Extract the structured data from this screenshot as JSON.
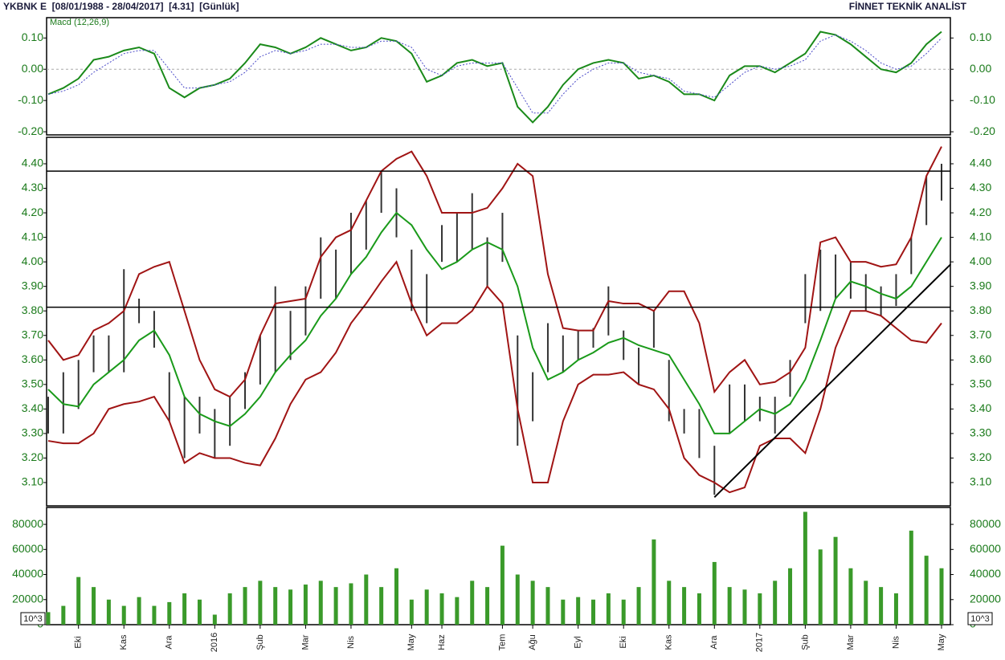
{
  "header": {
    "left": "YKBNK E  [08/01/1988 - 28/04/2017]  [4.31]  [Günlük]",
    "right": "FİNNET TEKNİK ANALİST"
  },
  "chart_data": [
    {
      "type": "line",
      "title": "Macd (12,26,9)",
      "ylim": [
        -0.21,
        0.165
      ],
      "zero_line": true,
      "yticks": [
        {
          "value": 0.1,
          "label": "0.10"
        },
        {
          "value": 0,
          "label": "0.00"
        },
        {
          "value": -0.1,
          "label": "-0.10"
        },
        {
          "value": -0.2,
          "label": "-0.20"
        }
      ],
      "series": [
        {
          "color": "#1a8a1a",
          "dash": false,
          "values": [
            -0.08,
            -0.06,
            -0.03,
            0.03,
            0.04,
            0.06,
            0.07,
            0.05,
            -0.06,
            -0.09,
            -0.06,
            -0.05,
            -0.03,
            0.02,
            0.08,
            0.07,
            0.05,
            0.07,
            0.1,
            0.08,
            0.06,
            0.07,
            0.1,
            0.09,
            0.05,
            -0.04,
            -0.02,
            0.02,
            0.03,
            0.01,
            0.02,
            -0.12,
            -0.17,
            -0.12,
            -0.05,
            0.0,
            0.02,
            0.03,
            0.02,
            -0.03,
            -0.02,
            -0.04,
            -0.08,
            -0.08,
            -0.1,
            -0.02,
            0.01,
            0.01,
            -0.01,
            0.02,
            0.05,
            0.12,
            0.11,
            0.08,
            0.04,
            0.0,
            -0.01,
            0.02,
            0.08,
            0.12
          ]
        },
        {
          "color": "#4a4ac8",
          "dash": true,
          "values": [
            -0.08,
            -0.07,
            -0.05,
            -0.01,
            0.02,
            0.05,
            0.06,
            0.06,
            0.0,
            -0.06,
            -0.06,
            -0.05,
            -0.04,
            -0.01,
            0.04,
            0.06,
            0.05,
            0.06,
            0.08,
            0.08,
            0.07,
            0.07,
            0.09,
            0.09,
            0.07,
            0.0,
            -0.02,
            0.01,
            0.02,
            0.02,
            0.02,
            -0.06,
            -0.14,
            -0.14,
            -0.08,
            -0.03,
            0.0,
            0.02,
            0.02,
            -0.01,
            -0.02,
            -0.03,
            -0.07,
            -0.08,
            -0.09,
            -0.05,
            -0.01,
            0.01,
            0.0,
            0.01,
            0.03,
            0.09,
            0.11,
            0.09,
            0.06,
            0.02,
            0.0,
            0.01,
            0.05,
            0.1
          ]
        }
      ]
    },
    {
      "type": "range-bar",
      "ylim": [
        3.005,
        4.508
      ],
      "color": "#333333",
      "yticks": [
        {
          "value": 3.1,
          "label": "3.10"
        },
        {
          "value": 3.2,
          "label": "3.20"
        },
        {
          "value": 3.3,
          "label": "3.30"
        },
        {
          "value": 3.4,
          "label": "3.40"
        },
        {
          "value": 3.5,
          "label": "3.50"
        },
        {
          "value": 3.6,
          "label": "3.60"
        },
        {
          "value": 3.7,
          "label": "3.70"
        },
        {
          "value": 3.8,
          "label": "3.80"
        },
        {
          "value": 3.9,
          "label": "3.90"
        },
        {
          "value": 4.0,
          "label": "4.00"
        },
        {
          "value": 4.1,
          "label": "4.10"
        },
        {
          "value": 4.2,
          "label": "4.20"
        },
        {
          "value": 4.3,
          "label": "4.30"
        },
        {
          "value": 4.4,
          "label": "4.40"
        }
      ],
      "high": [
        3.45,
        3.55,
        3.6,
        3.7,
        3.7,
        3.97,
        3.85,
        3.8,
        3.55,
        3.45,
        3.45,
        3.4,
        3.45,
        3.55,
        3.7,
        3.9,
        3.8,
        3.9,
        4.1,
        4.05,
        4.2,
        4.25,
        4.37,
        4.3,
        4.05,
        3.95,
        4.15,
        4.2,
        4.28,
        4.1,
        4.2,
        3.7,
        3.55,
        3.75,
        3.7,
        3.72,
        3.73,
        3.9,
        3.72,
        3.65,
        3.8,
        3.6,
        3.4,
        3.4,
        3.25,
        3.5,
        3.5,
        3.45,
        3.45,
        3.6,
        3.95,
        4.05,
        4.03,
        4.0,
        3.95,
        3.9,
        3.95,
        4.1,
        4.35,
        4.4
      ],
      "low": [
        3.3,
        3.3,
        3.4,
        3.55,
        3.55,
        3.55,
        3.75,
        3.65,
        3.35,
        3.2,
        3.3,
        3.2,
        3.25,
        3.4,
        3.5,
        3.55,
        3.6,
        3.7,
        3.85,
        3.85,
        3.95,
        4.05,
        4.2,
        4.1,
        3.8,
        3.75,
        4.0,
        4.0,
        4.05,
        3.9,
        4.0,
        3.25,
        3.35,
        3.55,
        3.55,
        3.6,
        3.65,
        3.7,
        3.6,
        3.5,
        3.65,
        3.35,
        3.3,
        3.2,
        3.05,
        3.3,
        3.35,
        3.35,
        3.3,
        3.45,
        3.75,
        3.8,
        3.85,
        3.85,
        3.8,
        3.78,
        3.82,
        3.95,
        4.15,
        4.25
      ],
      "series": [
        {
          "color": "#a01414",
          "values": [
            3.68,
            3.6,
            3.62,
            3.72,
            3.75,
            3.8,
            3.95,
            3.98,
            4.0,
            3.8,
            3.6,
            3.48,
            3.45,
            3.52,
            3.7,
            3.83,
            3.84,
            3.85,
            4.02,
            4.1,
            4.13,
            4.25,
            4.37,
            4.42,
            4.45,
            4.35,
            4.2,
            4.2,
            4.2,
            4.22,
            4.3,
            4.4,
            4.35,
            3.95,
            3.73,
            3.72,
            3.72,
            3.84,
            3.83,
            3.83,
            3.8,
            3.88,
            3.88,
            3.75,
            3.47,
            3.55,
            3.6,
            3.5,
            3.51,
            3.55,
            3.65,
            4.08,
            4.1,
            4.0,
            4.0,
            3.98,
            3.99,
            4.1,
            4.35,
            4.47
          ]
        },
        {
          "color": "#1a9a1a",
          "values": [
            3.48,
            3.42,
            3.41,
            3.5,
            3.55,
            3.6,
            3.68,
            3.72,
            3.62,
            3.45,
            3.38,
            3.35,
            3.33,
            3.38,
            3.45,
            3.55,
            3.62,
            3.68,
            3.78,
            3.85,
            3.95,
            4.02,
            4.12,
            4.2,
            4.15,
            4.05,
            3.97,
            4.0,
            4.05,
            4.08,
            4.05,
            3.9,
            3.65,
            3.52,
            3.55,
            3.6,
            3.63,
            3.67,
            3.69,
            3.66,
            3.64,
            3.62,
            3.52,
            3.42,
            3.3,
            3.3,
            3.35,
            3.4,
            3.38,
            3.42,
            3.52,
            3.68,
            3.85,
            3.92,
            3.9,
            3.87,
            3.85,
            3.9,
            4.0,
            4.1
          ]
        },
        {
          "color": "#a01414",
          "values": [
            3.27,
            3.26,
            3.26,
            3.3,
            3.4,
            3.42,
            3.43,
            3.45,
            3.35,
            3.18,
            3.22,
            3.2,
            3.2,
            3.18,
            3.17,
            3.28,
            3.42,
            3.52,
            3.55,
            3.63,
            3.75,
            3.83,
            3.92,
            4.0,
            3.83,
            3.7,
            3.75,
            3.75,
            3.8,
            3.9,
            3.83,
            3.4,
            3.1,
            3.1,
            3.35,
            3.5,
            3.54,
            3.54,
            3.55,
            3.5,
            3.48,
            3.4,
            3.2,
            3.13,
            3.1,
            3.06,
            3.08,
            3.25,
            3.28,
            3.28,
            3.22,
            3.4,
            3.65,
            3.8,
            3.8,
            3.78,
            3.73,
            3.68,
            3.67,
            3.75
          ]
        }
      ],
      "hlines": [
        4.37,
        3.815
      ],
      "trendline": {
        "x": [
          44,
          59.6
        ],
        "y": [
          3.04,
          3.99
        ]
      }
    },
    {
      "type": "bar",
      "ylim": [
        0,
        93500
      ],
      "color": "#3a9a2a",
      "unit": "10^3",
      "yticks": [
        0,
        20000,
        40000,
        60000,
        80000
      ],
      "categories": [
        null,
        null,
        "Eki",
        null,
        null,
        "Kas",
        null,
        null,
        "Ara",
        null,
        null,
        "2016",
        null,
        null,
        "Şub",
        null,
        null,
        "Mar",
        null,
        null,
        "Nis",
        null,
        null,
        null,
        "May",
        null,
        "Haz",
        null,
        null,
        null,
        "Tem",
        null,
        "Ağu",
        null,
        null,
        "Eyl",
        null,
        null,
        "Eki",
        null,
        null,
        "Kas",
        null,
        null,
        "Ara",
        null,
        null,
        "2017",
        null,
        null,
        "Şub",
        null,
        null,
        "Mar",
        null,
        null,
        "Nis",
        null,
        null,
        "May"
      ],
      "values": [
        10000,
        15000,
        38000,
        30000,
        20000,
        15000,
        22000,
        15000,
        18000,
        25000,
        20000,
        8000,
        25000,
        30000,
        35000,
        30000,
        28000,
        32000,
        35000,
        30000,
        33000,
        40000,
        30000,
        45000,
        20000,
        28000,
        25000,
        22000,
        35000,
        30000,
        63000,
        40000,
        35000,
        30000,
        20000,
        22000,
        20000,
        25000,
        20000,
        30000,
        68000,
        35000,
        30000,
        25000,
        50000,
        30000,
        28000,
        25000,
        35000,
        45000,
        90000,
        60000,
        70000,
        45000,
        35000,
        30000,
        25000,
        75000,
        55000,
        45000
      ]
    }
  ]
}
